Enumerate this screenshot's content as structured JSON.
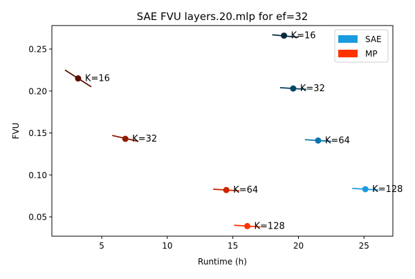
{
  "chart_data": {
    "type": "scatter",
    "title": "SAE FVU layers.20.mlp for ef=32",
    "xlabel": "Runtime (h)",
    "ylabel": "FVU",
    "xlim": [
      1.2,
      27.2
    ],
    "ylim": [
      0.027,
      0.278
    ],
    "x_ticks": [
      5,
      10,
      15,
      20,
      25
    ],
    "y_ticks": [
      0.05,
      0.1,
      0.15,
      0.2,
      0.25
    ],
    "x_tick_labels": [
      "5",
      "10",
      "15",
      "20",
      "25"
    ],
    "y_tick_labels": [
      "0.05",
      "0.10",
      "0.15",
      "0.20",
      "0.25"
    ],
    "grid": false,
    "legend": {
      "placement": "top-right",
      "entries": [
        {
          "name": "SAE",
          "color": "#1a9be0"
        },
        {
          "name": "MP",
          "color": "#ff3300"
        }
      ]
    },
    "series": [
      {
        "name": "SAE",
        "points": [
          {
            "label": "K=16",
            "x": 18.9,
            "y": 0.266,
            "color": "#062a3e",
            "line_x": [
              18.0,
              20.0
            ],
            "line_y": [
              0.267,
              0.264
            ]
          },
          {
            "label": "K=32",
            "x": 19.6,
            "y": 0.203,
            "color": "#074766",
            "line_x": [
              18.6,
              20.6
            ],
            "line_y": [
              0.204,
              0.202
            ]
          },
          {
            "label": "K=64",
            "x": 21.5,
            "y": 0.141,
            "color": "#0b74ad",
            "line_x": [
              20.5,
              22.5
            ],
            "line_y": [
              0.142,
              0.14
            ]
          },
          {
            "label": "K=128",
            "x": 25.1,
            "y": 0.083,
            "color": "#1a9be0",
            "line_x": [
              24.1,
              26.1
            ],
            "line_y": [
              0.084,
              0.082
            ]
          }
        ]
      },
      {
        "name": "MP",
        "points": [
          {
            "label": "K=16",
            "x": 3.2,
            "y": 0.215,
            "color": "#5a0d00",
            "line_x": [
              2.2,
              4.2
            ],
            "line_y": [
              0.225,
              0.205
            ]
          },
          {
            "label": "K=32",
            "x": 6.8,
            "y": 0.143,
            "color": "#8e1a00",
            "line_x": [
              5.8,
              7.8
            ],
            "line_y": [
              0.147,
              0.14
            ]
          },
          {
            "label": "K=64",
            "x": 14.5,
            "y": 0.082,
            "color": "#cc2700",
            "line_x": [
              13.5,
              15.5
            ],
            "line_y": [
              0.083,
              0.081
            ]
          },
          {
            "label": "K=128",
            "x": 16.1,
            "y": 0.039,
            "color": "#ff3300",
            "line_x": [
              15.1,
              17.1
            ],
            "line_y": [
              0.04,
              0.038
            ]
          }
        ]
      }
    ]
  }
}
